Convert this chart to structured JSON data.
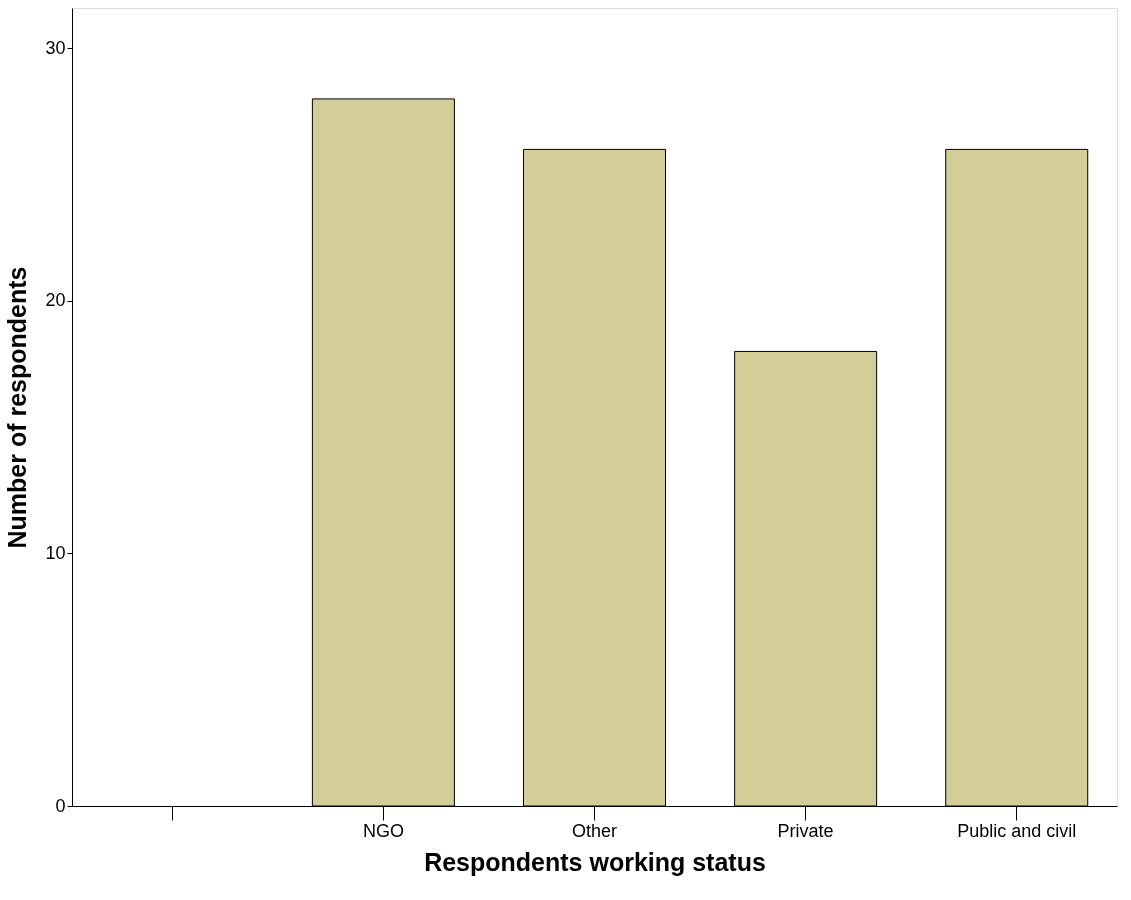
{
  "chart_data": {
    "type": "bar",
    "xlabel": "Respondents working status",
    "ylabel": "Number of respondents",
    "categories": [
      null,
      "NGO",
      "Other",
      "Private",
      "Public and civil"
    ],
    "values": [
      null,
      28,
      26,
      18,
      26
    ],
    "color": "#d3ce97",
    "ylim": [
      0,
      31.6
    ],
    "yticks": [
      0,
      10,
      20,
      30
    ],
    "grid": false
  }
}
